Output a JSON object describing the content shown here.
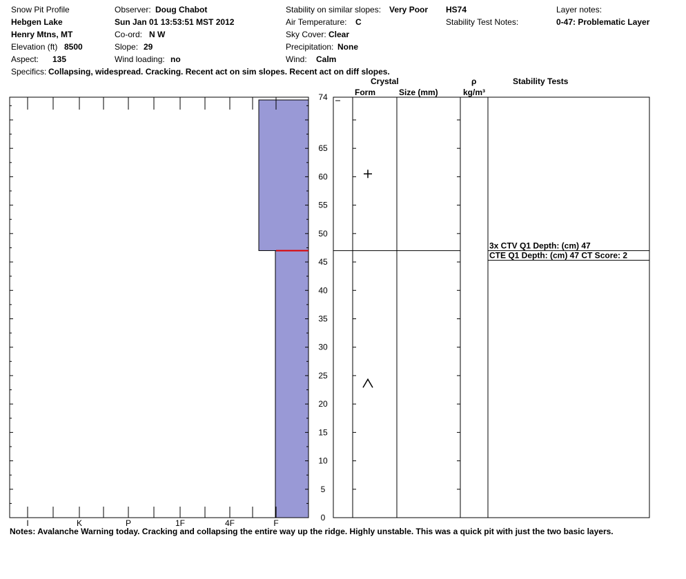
{
  "header": {
    "title": "Snow Pit Profile",
    "location": "Hebgen Lake",
    "range": "Henry Mtns, MT",
    "elevation_label": "Elevation (ft)",
    "elevation_value": "8500",
    "aspect_label": "Aspect:",
    "aspect_value": "135",
    "specifics_label": "Specifics:",
    "specifics_value": "Collapsing, widespread. Cracking. Recent act on sim slopes. Recent act on diff slopes.",
    "observer_label": "Observer:",
    "observer_value": "Doug Chabot",
    "datetime": "Sun Jan 01 13:53:51 MST 2012",
    "coord_label": "Co-ord:",
    "coord_value": "N  W",
    "slope_label": "Slope:",
    "slope_value": "29",
    "wind_loading_label": "Wind loading:",
    "wind_loading_value": "no",
    "stability_label": "Stability on similar slopes:",
    "stability_value": "Very Poor",
    "air_temp_label": "Air Temperature:",
    "air_temp_value": "C",
    "sky_label": "Sky Cover:",
    "sky_value": "Clear",
    "precip_label": "Precipitation:",
    "precip_value": "None",
    "wind_label": "Wind:",
    "wind_value": "Calm",
    "hs": "HS74",
    "stability_test_notes_label": "Stability Test Notes:",
    "layer_notes_label": "Layer notes:",
    "layer_notes_value": "0-47: Problematic Layer"
  },
  "columns": {
    "crystal": "Crystal",
    "form": "Form",
    "size": "Size (mm)",
    "rho": "ρ",
    "density_unit": "kg/m³",
    "stability_tests": "Stability Tests"
  },
  "notes": "Notes:  Avalanche Warning today. Cracking and collapsing the entire way up the ridge. Highly unstable. This was a quick pit with just the two basic layers.",
  "colors": {
    "layer_fill": "#9999d6",
    "weak_layer_line": "#dd0000",
    "grid": "#000000"
  },
  "chart_data": {
    "type": "bar",
    "ylim": [
      0,
      74
    ],
    "y_ticks": [
      0,
      5,
      10,
      15,
      20,
      25,
      30,
      35,
      40,
      45,
      50,
      55,
      60,
      65,
      74
    ],
    "hardness_scale": [
      "I",
      "K",
      "P",
      "1F",
      "4F",
      "F"
    ],
    "layers": [
      {
        "bottom": 0,
        "top": 47,
        "hardness": "F",
        "crystal_form": "^"
      },
      {
        "bottom": 47,
        "top": 74,
        "hardness": "4F",
        "crystal_form": "+"
      }
    ],
    "weak_layer_depth": 47,
    "stability_tests": [
      {
        "depth": 47,
        "text": "3x CTV Q1 Depth: (cm) 47"
      },
      {
        "depth": 47,
        "text": "CTE Q1 Depth: (cm) 47 CT Score: 2"
      }
    ]
  }
}
